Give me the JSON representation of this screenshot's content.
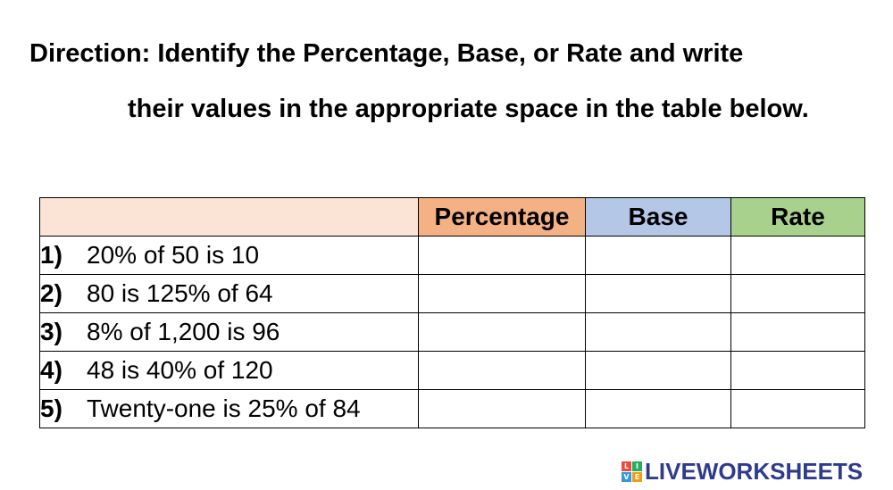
{
  "direction": {
    "line1": "Direction: Identify the Percentage, Base, or Rate and write",
    "line2": "their values in the appropriate space in the table below."
  },
  "table": {
    "headers": [
      "",
      "Percentage",
      "Base",
      "Rate"
    ],
    "header_colors": [
      "#fbe3d6",
      "#f4b183",
      "#b4c7e7",
      "#a9d18e"
    ],
    "rows": [
      {
        "number": "1)",
        "text": "20% of 50 is 10"
      },
      {
        "number": "2)",
        "text": "80 is 125% of 64"
      },
      {
        "number": "3)",
        "text": "8% of 1,200 is 96"
      },
      {
        "number": "4)",
        "text": "48 is 40% of 120"
      },
      {
        "number": "5)",
        "text": "Twenty-one is 25% of 84"
      }
    ]
  },
  "logo": {
    "text": "LIVEWORKSHEETS",
    "block_letters": [
      "L",
      "I",
      "V",
      "E"
    ],
    "block_colors": [
      "#e74c3c",
      "#27ae60",
      "#3498db",
      "#f39c12"
    ]
  }
}
